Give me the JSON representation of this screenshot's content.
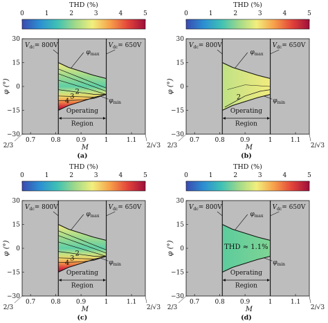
{
  "colorbar": {
    "title": "THD (%)",
    "ticks": [
      "0",
      "1",
      "2",
      "3",
      "4",
      "5"
    ],
    "min": 0,
    "max": 5
  },
  "axes": {
    "xlabel": "M",
    "ylabel": "φ (°)",
    "xlim": [
      0.6667,
      1.1547
    ],
    "ylim": [
      -30,
      30
    ],
    "xticks": [
      0.7,
      0.8,
      0.9,
      1.0,
      1.1
    ],
    "xtick_labels": [
      "0.7",
      "0.8",
      "0.9",
      "1",
      "1.1"
    ],
    "yticks": [
      -30,
      -15,
      0,
      15,
      30
    ],
    "ytick_labels": [
      "−30",
      "−15",
      "0",
      "15",
      "30"
    ],
    "left_end_label": "2/3",
    "right_end_label": "2/√3"
  },
  "annotations": {
    "vdc_left": "V",
    "vdc_left_sub": "dc",
    "vdc_left_val": "= 800V",
    "vdc_right": "V",
    "vdc_right_sub": "dc",
    "vdc_right_val": "= 650V",
    "phi_max": "φ",
    "phi_max_sub": "max",
    "phi_min": "φ",
    "phi_min_sub": "min",
    "region_line1": "Operating",
    "region_line2": "Region"
  },
  "panels": [
    {
      "label": "(a)",
      "variant": "hot",
      "contours": [
        "2",
        "3",
        "4"
      ],
      "text": ""
    },
    {
      "label": "(b)",
      "variant": "cool",
      "contours": [
        "2"
      ],
      "text": ""
    },
    {
      "label": "(c)",
      "variant": "hot",
      "contours": [
        "2",
        "3",
        "4"
      ],
      "text": ""
    },
    {
      "label": "(d)",
      "variant": "flat",
      "contours": [],
      "text": "THD ≈ 1.1%"
    }
  ],
  "chart_data": {
    "type": "heatmap",
    "x_range": [
      0.81,
      1.0
    ],
    "boundaries": {
      "phi_max": {
        "x": [
          0.81,
          0.85,
          0.9,
          0.95,
          1.0
        ],
        "y": [
          15,
          12,
          9.5,
          7,
          5
        ]
      },
      "phi_min": {
        "x": [
          0.81,
          0.85,
          0.9,
          0.95,
          1.0
        ],
        "y": [
          -15,
          -12,
          -9.5,
          -7,
          -5
        ]
      }
    },
    "vlines": [
      0.81,
      1.0
    ]
  },
  "colors": {
    "shade": "#bdbdbd",
    "cmap": [
      "#3a4bb0",
      "#2c8fd2",
      "#3fc1b5",
      "#9fd98a",
      "#f2ef7d",
      "#f7a04a",
      "#e3443a",
      "#9e0f3a"
    ]
  }
}
